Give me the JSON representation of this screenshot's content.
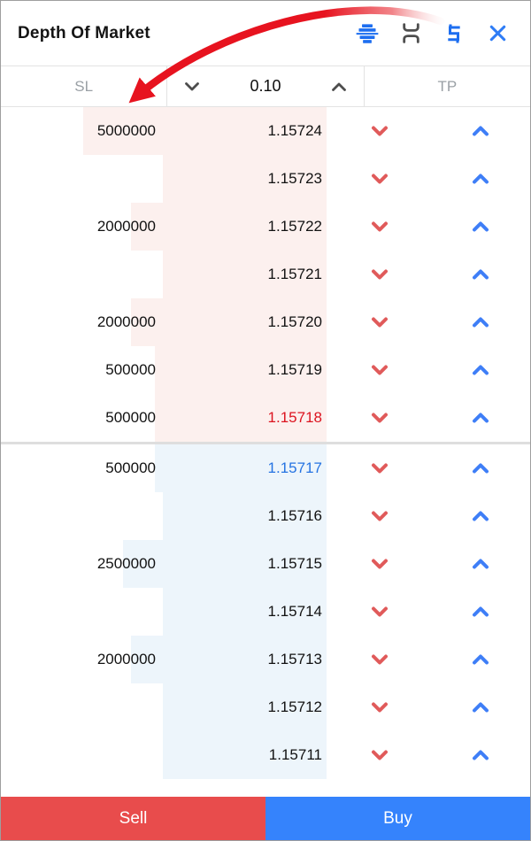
{
  "window": {
    "title": "Depth Of Market"
  },
  "titlebar": {
    "icons": [
      {
        "name": "depth-chart-icon",
        "color": "#1d6ef0"
      },
      {
        "name": "collapse-rows-icon",
        "color": "#4e4e4e"
      },
      {
        "name": "price-dollar-icon",
        "color": "#1d6ef0"
      },
      {
        "name": "close-icon",
        "color": "#2e7cf6"
      }
    ]
  },
  "controls": {
    "sl_label": "SL",
    "tp_label": "TP",
    "lot_value": "0.10"
  },
  "dom": {
    "rows": [
      {
        "volume": "5000000",
        "price": "1.15724",
        "side": "ask",
        "best": false
      },
      {
        "volume": "",
        "price": "1.15723",
        "side": "ask",
        "best": false
      },
      {
        "volume": "2000000",
        "price": "1.15722",
        "side": "ask",
        "best": false
      },
      {
        "volume": "",
        "price": "1.15721",
        "side": "ask",
        "best": false
      },
      {
        "volume": "2000000",
        "price": "1.15720",
        "side": "ask",
        "best": false
      },
      {
        "volume": "500000",
        "price": "1.15719",
        "side": "ask",
        "best": false
      },
      {
        "volume": "500000",
        "price": "1.15718",
        "side": "ask",
        "best": true
      },
      {
        "volume": "500000",
        "price": "1.15717",
        "side": "bid",
        "best": true
      },
      {
        "volume": "",
        "price": "1.15716",
        "side": "bid",
        "best": false
      },
      {
        "volume": "2500000",
        "price": "1.15715",
        "side": "bid",
        "best": false
      },
      {
        "volume": "",
        "price": "1.15714",
        "side": "bid",
        "best": false
      },
      {
        "volume": "2000000",
        "price": "1.15713",
        "side": "bid",
        "best": false
      },
      {
        "volume": "",
        "price": "1.15712",
        "side": "bid",
        "best": false
      },
      {
        "volume": "",
        "price": "1.15711",
        "side": "bid",
        "best": false
      }
    ]
  },
  "footer": {
    "sell_label": "Sell",
    "buy_label": "Buy"
  },
  "colors": {
    "ask_row_bg": "#fcf0ee",
    "bid_row_bg": "#edf5fb",
    "best_ask_price": "#dc1420",
    "best_bid_price": "#2573e2",
    "sell_chevron": "#e05a5a",
    "buy_chevron": "#3e7ef7",
    "sell_button": "#e84c4c",
    "buy_button": "#3583fc",
    "annotation_arrow": "#e7131f"
  }
}
